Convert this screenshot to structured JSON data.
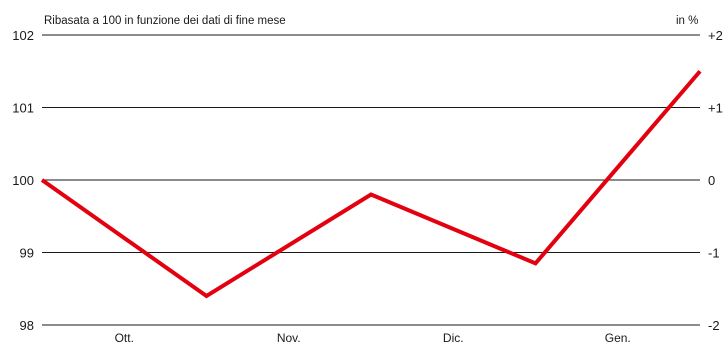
{
  "chart_data": {
    "type": "line",
    "title": "",
    "subtitle": "Ribasata a 100 in funzione dei dati di fine mese",
    "right_axis_unit": "in %",
    "categories": [
      "Ott.",
      "Nov.",
      "Dic.",
      "Gen."
    ],
    "x": [
      0,
      1,
      2,
      3,
      4
    ],
    "series": [
      {
        "values": [
          100.0,
          98.4,
          99.8,
          98.85,
          101.5
        ],
        "color": "#e3000f"
      }
    ],
    "ylim": [
      98,
      102
    ],
    "yticks_left": [
      "102",
      "101",
      "100",
      "99",
      "98"
    ],
    "yticks_left_values": [
      102,
      101,
      100,
      99,
      98
    ],
    "yticks_right": [
      "+2",
      "+1",
      "0",
      "-1",
      "-2"
    ],
    "grid": true,
    "legend": "none"
  }
}
